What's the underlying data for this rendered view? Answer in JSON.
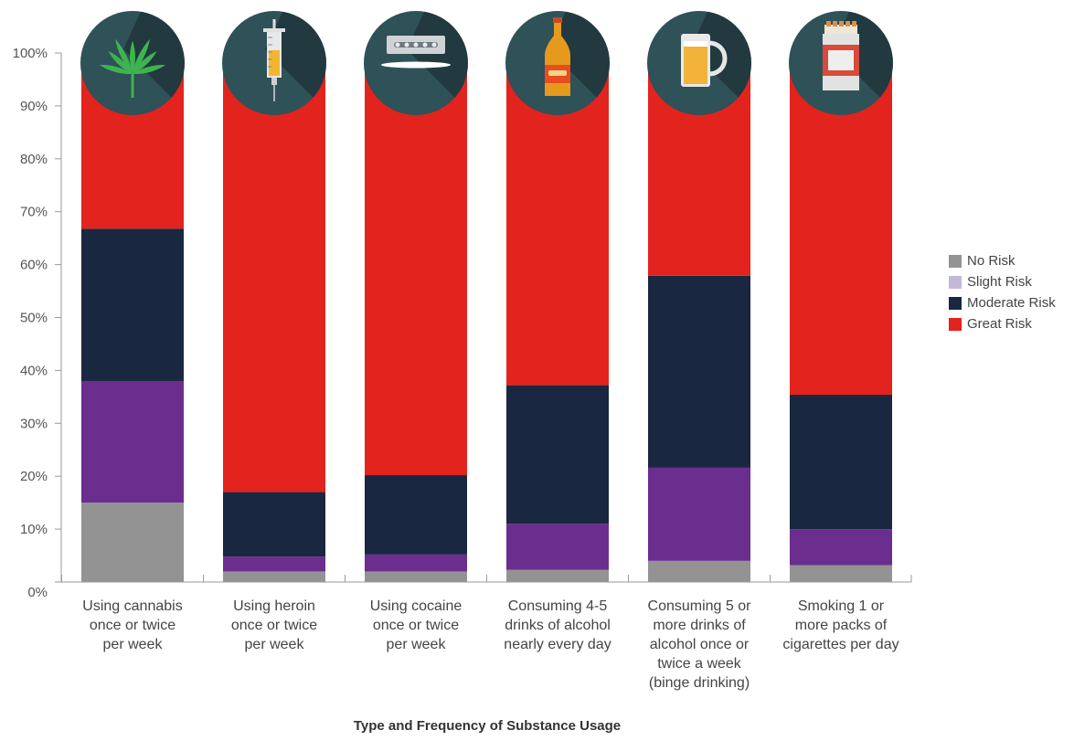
{
  "chart_data": {
    "type": "bar",
    "stacked": true,
    "title": "",
    "xlabel": "Type and Frequency of Substance Usage",
    "ylabel": "",
    "ylim": [
      0,
      100
    ],
    "y_ticks": [
      "0%",
      "10%",
      "20%",
      "30%",
      "40%",
      "50%",
      "60%",
      "70%",
      "80%",
      "90%",
      "100%"
    ],
    "categories": [
      [
        "Using cannabis",
        "once or twice",
        "per week"
      ],
      [
        "Using heroin",
        "once or twice",
        "per week"
      ],
      [
        "Using cocaine",
        "once or twice",
        "per week"
      ],
      [
        "Consuming 4-5",
        "drinks of alcohol",
        "nearly every day"
      ],
      [
        "Consuming 5 or",
        "more drinks of",
        "alcohol once or",
        "twice a week",
        "(binge drinking)"
      ],
      [
        "Smoking 1 or",
        "more packs of",
        "cigarettes per day"
      ]
    ],
    "category_icons": [
      "cannabis-leaf-icon",
      "syringe-icon",
      "razor-blade-icon",
      "beer-bottle-icon",
      "beer-pitcher-icon",
      "cigarette-pack-icon"
    ],
    "series": [
      {
        "name": "No Risk",
        "color": "#939393",
        "values": [
          15.0,
          2.0,
          2.0,
          2.3,
          4.0,
          3.2
        ]
      },
      {
        "name": "Slight Risk",
        "color": "#6b2d8e",
        "values": [
          23.0,
          2.8,
          3.2,
          8.7,
          17.6,
          6.8
        ]
      },
      {
        "name": "Moderate Risk",
        "color": "#1a2740",
        "values": [
          28.8,
          12.2,
          15.0,
          26.2,
          36.3,
          25.4
        ]
      },
      {
        "name": "Great Risk",
        "color": "#e3231d",
        "values": [
          33.2,
          83.0,
          79.8,
          62.8,
          42.1,
          64.6
        ]
      }
    ],
    "legend_colors": [
      "#939393",
      "#c5b7d8",
      "#1a2740",
      "#e3231d"
    ],
    "legend_position": "right",
    "grid": false
  }
}
